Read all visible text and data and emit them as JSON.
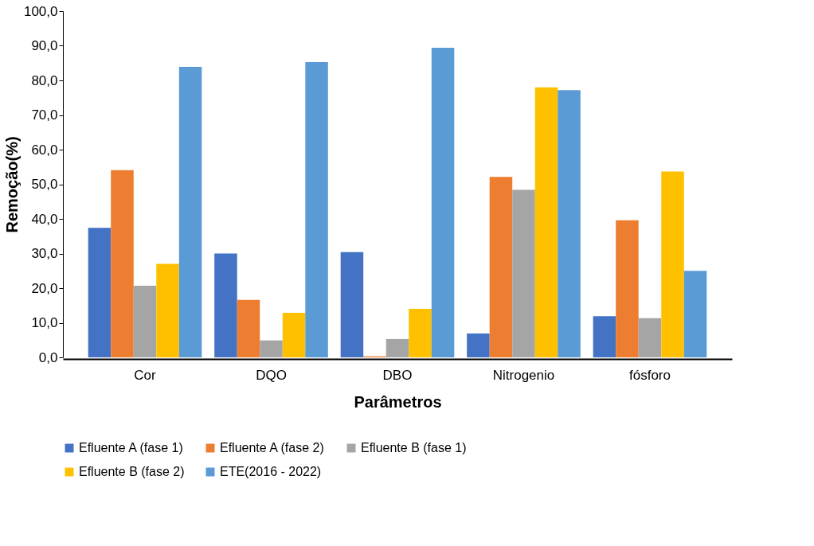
{
  "chart_data": {
    "type": "bar",
    "xlabel": "Parâmetros",
    "ylabel": "Remoção(%)",
    "categories": [
      "Cor",
      "DQO",
      "DBO",
      "Nitrogenio",
      "fósforo"
    ],
    "series": [
      {
        "name": "Efluente A (fase 1)",
        "color": "#4472c4",
        "values": [
          37.4,
          30.0,
          30.4,
          6.9,
          11.9
        ]
      },
      {
        "name": "Efluente A (fase 2)",
        "color": "#ed7d31",
        "values": [
          54.1,
          16.6,
          0.3,
          52.1,
          39.6
        ]
      },
      {
        "name": "Efluente B (fase 1)",
        "color": "#a5a5a5",
        "values": [
          20.7,
          4.9,
          5.3,
          48.4,
          11.3
        ]
      },
      {
        "name": "Efluente B (fase 2)",
        "color": "#ffc000",
        "values": [
          27.0,
          12.9,
          14.0,
          78.0,
          53.7
        ]
      },
      {
        "name": "ETE(2016 - 2022)",
        "color": "#5b9bd5",
        "values": [
          83.9,
          85.3,
          89.4,
          77.2,
          25.0
        ]
      }
    ],
    "ylim": [
      0,
      100
    ],
    "yticks": [
      {
        "value": 0,
        "label": "0,0"
      },
      {
        "value": 10,
        "label": "10,0"
      },
      {
        "value": 20,
        "label": "20,0"
      },
      {
        "value": 30,
        "label": "30,0"
      },
      {
        "value": 40,
        "label": "40,0"
      },
      {
        "value": 50,
        "label": "50,0"
      },
      {
        "value": 60,
        "label": "60,0"
      },
      {
        "value": 70,
        "label": "70,0"
      },
      {
        "value": 80,
        "label": "80,0"
      },
      {
        "value": 90,
        "label": "90,0"
      },
      {
        "value": 100,
        "label": "100,0"
      }
    ],
    "grid": false,
    "legend": "bottom"
  }
}
